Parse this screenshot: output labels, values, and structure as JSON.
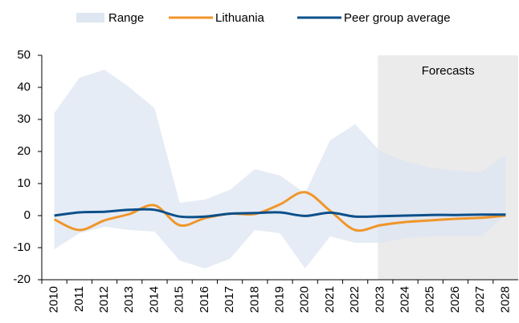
{
  "chart_data": {
    "type": "line",
    "categories": [
      "2010",
      "2011",
      "2012",
      "2013",
      "2014",
      "2015",
      "2016",
      "2017",
      "2018",
      "2019",
      "2020",
      "2021",
      "2022",
      "2023",
      "2024",
      "2025",
      "2026",
      "2027",
      "2028"
    ],
    "range": {
      "name": "Range",
      "color": "#dde6f1",
      "upper": [
        32,
        43,
        45.5,
        40,
        33.5,
        4,
        5,
        8,
        14.5,
        12.5,
        7,
        23.5,
        28.5,
        20,
        17,
        15,
        14,
        13.5,
        19
      ],
      "lower": [
        -10.5,
        -5.5,
        -3.5,
        -4.5,
        -5,
        -14,
        -16.5,
        -13.5,
        -4.5,
        -5.5,
        -16.5,
        -6.5,
        -8.5,
        -8.5,
        -7,
        -6.5,
        -6.5,
        -6.5,
        0
      ]
    },
    "series": [
      {
        "name": "Lithuania",
        "color": "#f0962a",
        "values": [
          -1.2,
          -4.5,
          -1.5,
          0.5,
          3.2,
          -3,
          -0.8,
          0.6,
          0.5,
          3.5,
          7.3,
          1.5,
          -4.5,
          -3,
          -2,
          -1.5,
          -1,
          -0.7,
          0
        ]
      },
      {
        "name": "Peer group average",
        "color": "#0b4f8a",
        "values": [
          0,
          1,
          1.2,
          1.8,
          1.8,
          -0.3,
          -0.3,
          0.6,
          0.8,
          1,
          -0.1,
          0.9,
          -0.3,
          -0.2,
          0,
          0.2,
          0.2,
          0.3,
          0.3
        ]
      }
    ],
    "forecast_region": {
      "label": "Forecasts",
      "start": "2023",
      "color": "#ebebeb"
    },
    "ylim": [
      -20,
      50
    ],
    "yticks": [
      -20,
      -10,
      0,
      10,
      20,
      30,
      40,
      50
    ]
  }
}
